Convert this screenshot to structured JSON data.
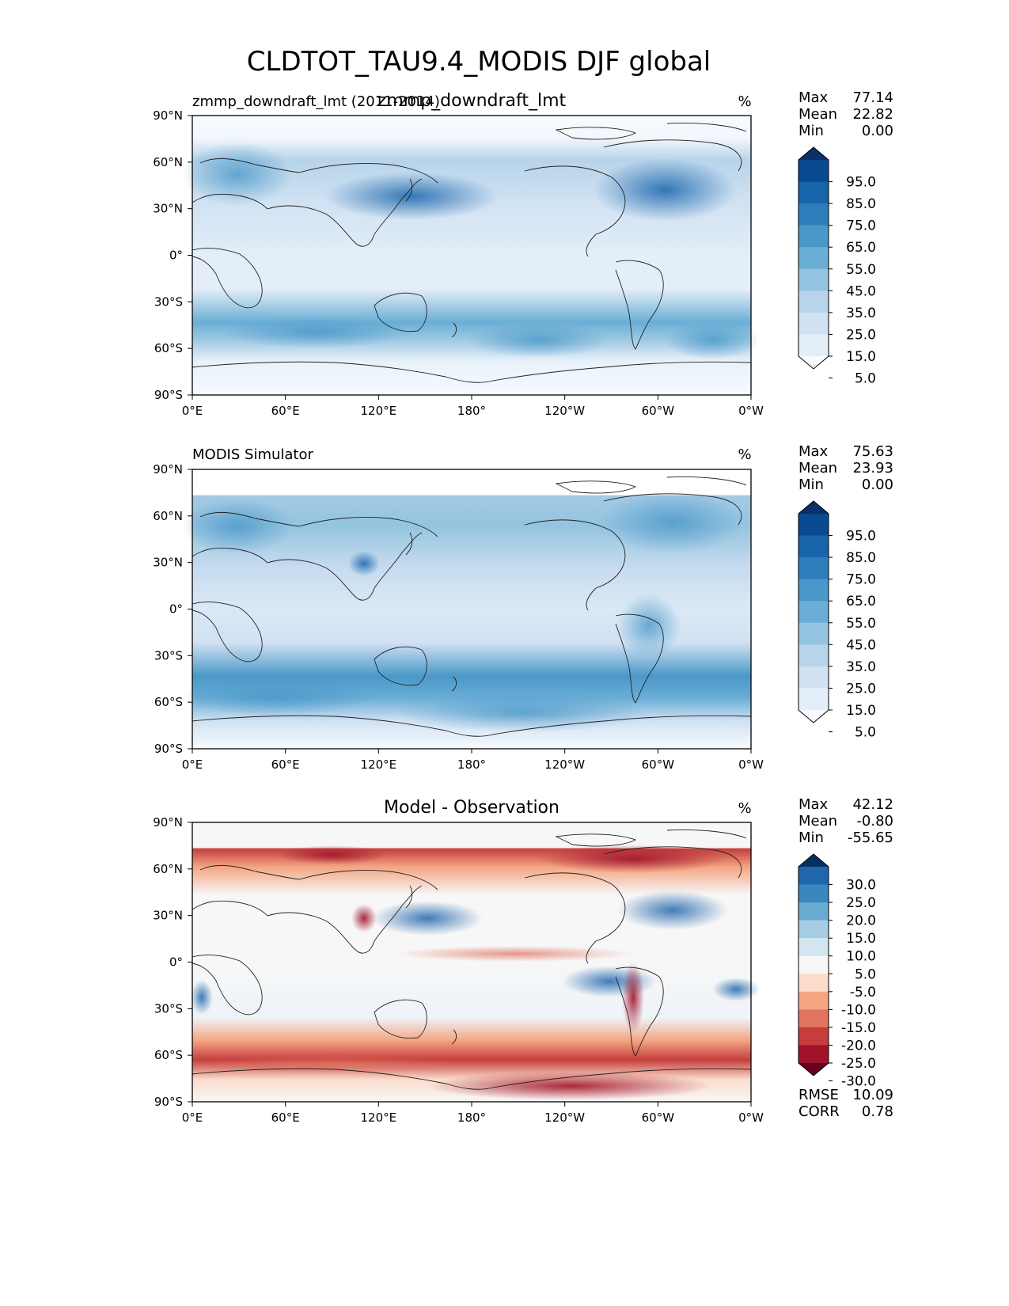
{
  "figure": {
    "title": "CLDTOT_TAU9.4_MODIS DJF global"
  },
  "panels": [
    {
      "id": "test",
      "left_title": "zmmp_downdraft_lmt (2011-2014)",
      "center_title": "zmmp_downdraft_lmt",
      "units": "%",
      "stats": [
        {
          "label": "Max",
          "value": "77.14"
        },
        {
          "label": "Mean",
          "value": "22.82"
        },
        {
          "label": "Min",
          "value": "0.00"
        }
      ],
      "colorbar": {
        "labels": [
          "95.0",
          "85.0",
          "75.0",
          "65.0",
          "55.0",
          "45.0",
          "35.0",
          "25.0",
          "15.0",
          "5.0"
        ],
        "colors": [
          "#08306b",
          "#0a4a90",
          "#1764ab",
          "#2e7ebc",
          "#4a98c9",
          "#6aaed6",
          "#94c4df",
          "#b7d4ea",
          "#d0e1f2",
          "#e3eef8",
          "#f7fbff"
        ]
      }
    },
    {
      "id": "ref",
      "left_title": "MODIS Simulator",
      "center_title": "",
      "units": "%",
      "stats": [
        {
          "label": "Max",
          "value": "75.63"
        },
        {
          "label": "Mean",
          "value": "23.93"
        },
        {
          "label": "Min",
          "value": "0.00"
        }
      ],
      "colorbar": {
        "labels": [
          "95.0",
          "85.0",
          "75.0",
          "65.0",
          "55.0",
          "45.0",
          "35.0",
          "25.0",
          "15.0",
          "5.0"
        ],
        "colors": [
          "#08306b",
          "#0a4a90",
          "#1764ab",
          "#2e7ebc",
          "#4a98c9",
          "#6aaed6",
          "#94c4df",
          "#b7d4ea",
          "#d0e1f2",
          "#e3eef8",
          "#f7fbff"
        ]
      }
    },
    {
      "id": "diff",
      "left_title": "",
      "center_title": "Model - Observation",
      "units": "%",
      "stats": [
        {
          "label": "Max",
          "value": "42.12"
        },
        {
          "label": "Mean",
          "value": "-0.80"
        },
        {
          "label": "Min",
          "value": "-55.65"
        }
      ],
      "extra_stats": [
        {
          "label": "RMSE",
          "value": "10.09"
        },
        {
          "label": "CORR",
          "value": "0.78"
        }
      ],
      "colorbar": {
        "labels": [
          "30.0",
          "25.0",
          "20.0",
          "15.0",
          "10.0",
          "5.0",
          "-5.0",
          "-10.0",
          "-15.0",
          "-20.0",
          "-25.0",
          "-30.0"
        ],
        "colors": [
          "#053061",
          "#2166ac",
          "#3a87bf",
          "#6aabd1",
          "#a5cce3",
          "#d3e6f0",
          "#f7f7f7",
          "#fbdccc",
          "#f4a683",
          "#e07560",
          "#c53e3d",
          "#a0132a",
          "#67001f"
        ]
      }
    }
  ],
  "axes": {
    "xticks": [
      "0°E",
      "60°E",
      "120°E",
      "180°",
      "120°W",
      "60°W",
      "0°W"
    ],
    "yticks": [
      "90°N",
      "60°N",
      "30°N",
      "0°",
      "30°S",
      "60°S",
      "90°S"
    ]
  },
  "chart_data": [
    {
      "type": "heatmap",
      "title": "zmmp_downdraft_lmt",
      "subtitle": "zmmp_downdraft_lmt (2011-2014)",
      "units": "%",
      "x_range": [
        0,
        360
      ],
      "y_range": [
        -90,
        90
      ],
      "levels": [
        5,
        15,
        25,
        35,
        45,
        55,
        65,
        75,
        85,
        95
      ],
      "max": 77.14,
      "mean": 22.82,
      "min": 0.0
    },
    {
      "type": "heatmap",
      "title": "MODIS Simulator",
      "units": "%",
      "x_range": [
        0,
        360
      ],
      "y_range": [
        -90,
        90
      ],
      "levels": [
        5,
        15,
        25,
        35,
        45,
        55,
        65,
        75,
        85,
        95
      ],
      "max": 75.63,
      "mean": 23.93,
      "min": 0.0
    },
    {
      "type": "heatmap",
      "title": "Model - Observation",
      "units": "%",
      "x_range": [
        0,
        360
      ],
      "y_range": [
        -90,
        90
      ],
      "levels": [
        -30,
        -25,
        -20,
        -15,
        -10,
        -5,
        5,
        10,
        15,
        20,
        25,
        30
      ],
      "max": 42.12,
      "mean": -0.8,
      "min": -55.65,
      "rmse": 10.09,
      "corr": 0.78
    }
  ]
}
